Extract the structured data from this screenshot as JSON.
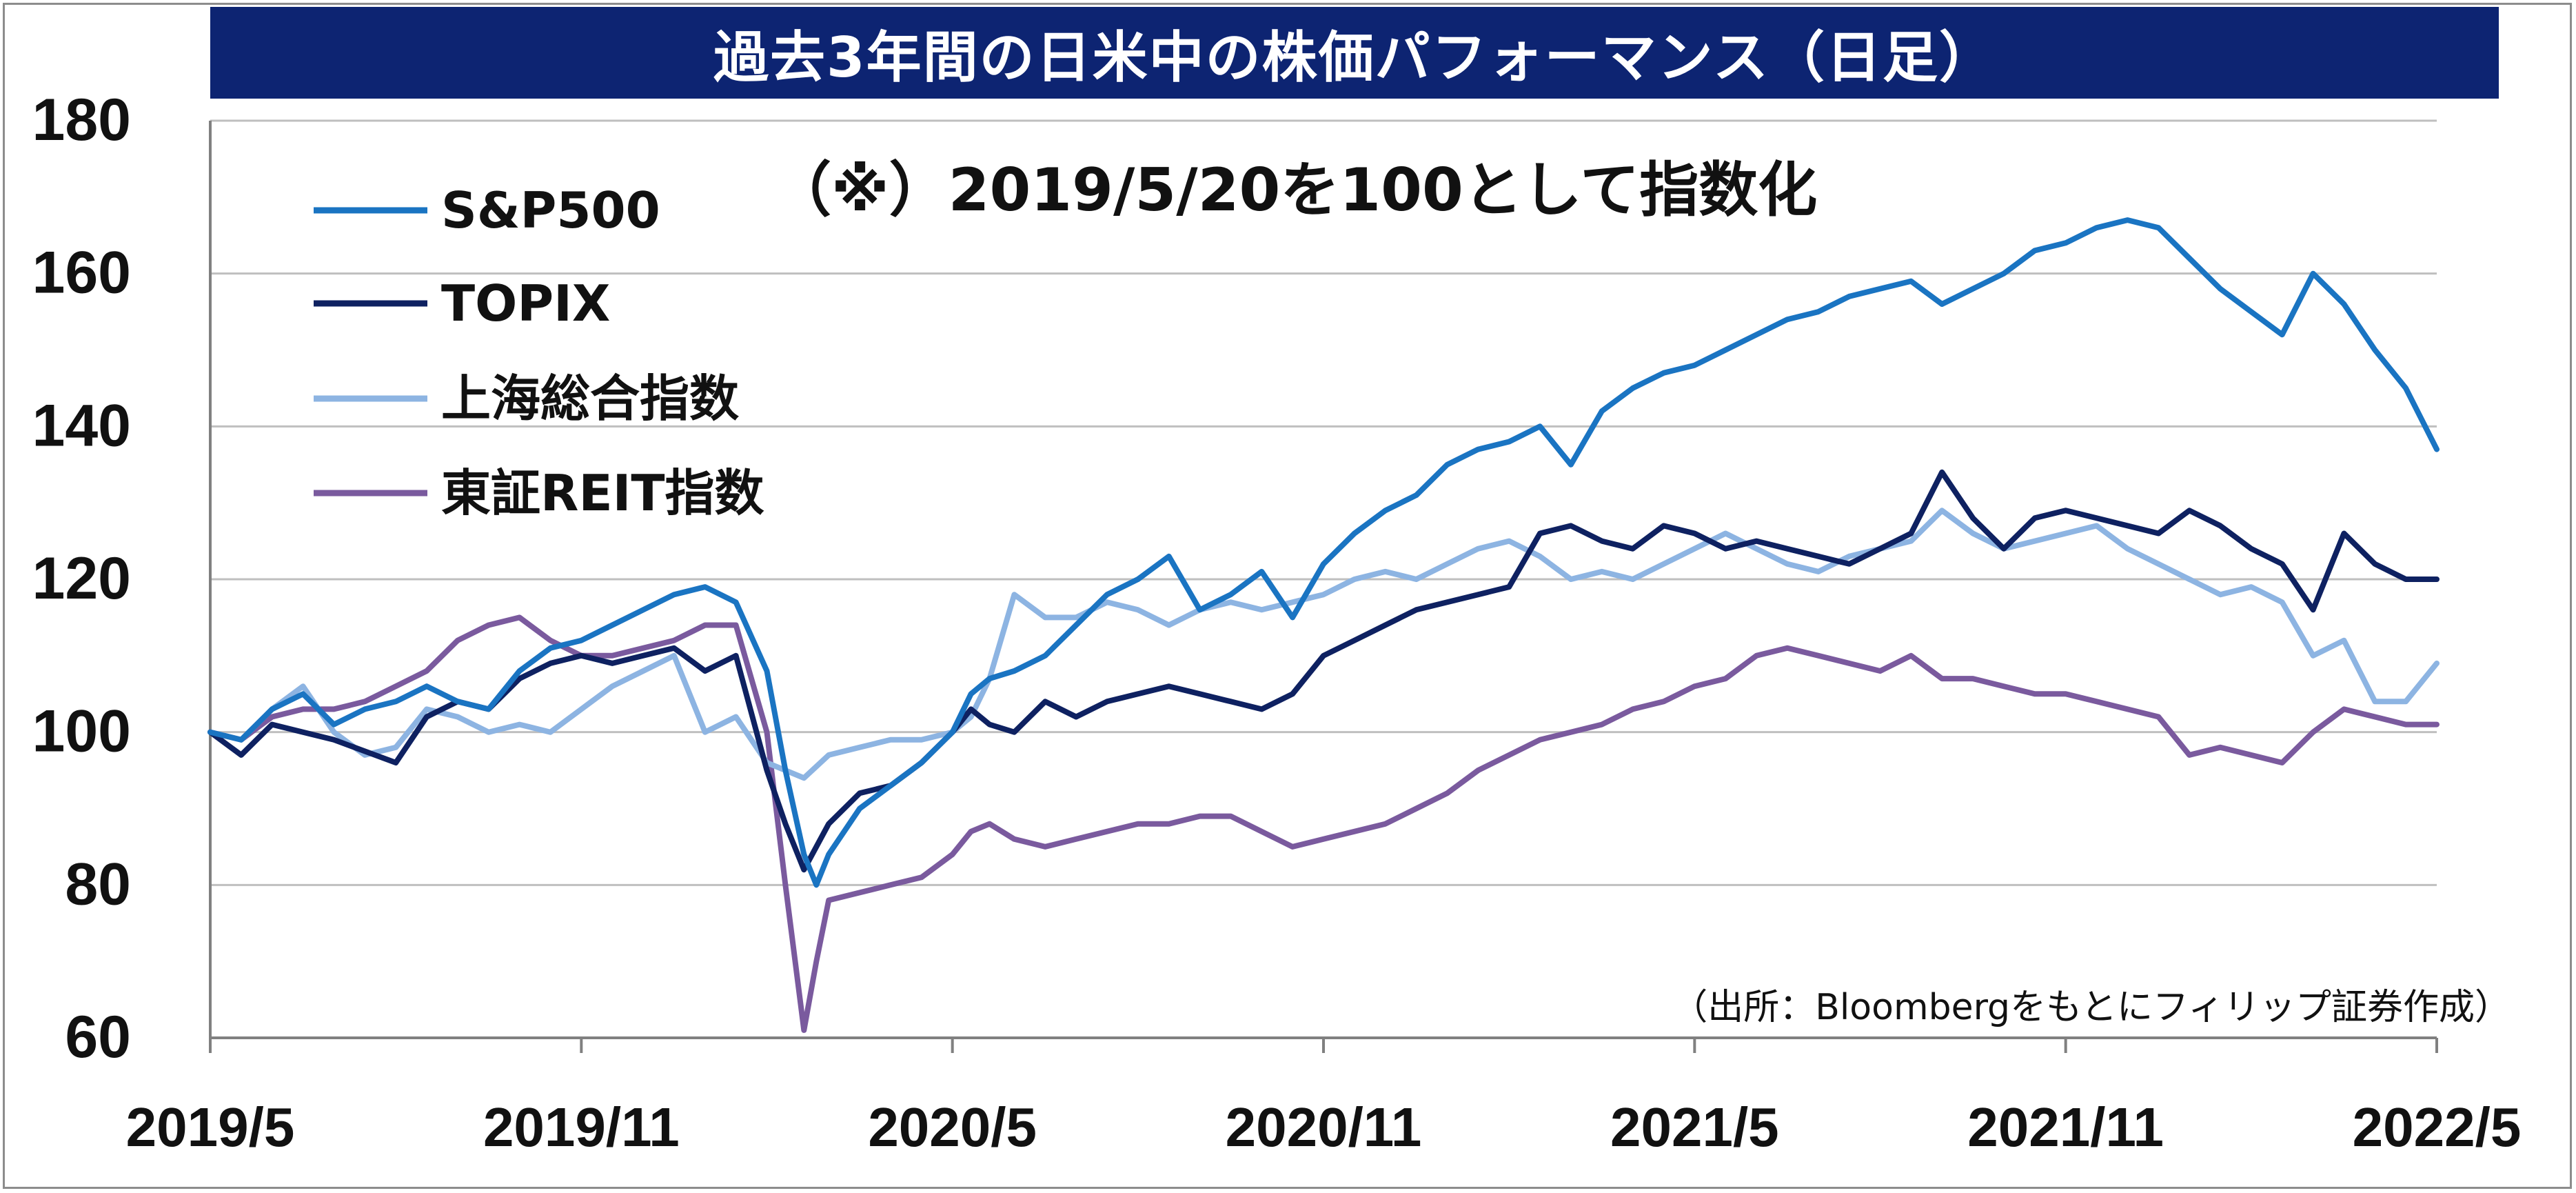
{
  "title": "過去3年間の日米中の株価パフォーマンス（日足）",
  "subtitle": "（※）2019/5/20を100として指数化",
  "source": "（出所：Bloombergをもとにフィリップ証券作成）",
  "colors": {
    "sp500": "#1a74c2",
    "topix": "#0e2161",
    "shanghai": "#8db4e2",
    "reit": "#7a5a9e",
    "title_bg": "#0d2472",
    "grid": "#bfbfbf",
    "axis": "#808080"
  },
  "chart_data": {
    "type": "line",
    "title": "過去3年間の日米中の株価パフォーマンス（日足）",
    "ylim": [
      60,
      180
    ],
    "yticks": [
      "60",
      "80",
      "100",
      "120",
      "140",
      "160",
      "180"
    ],
    "xlim": [
      0,
      36
    ],
    "xticks": [
      {
        "x": 0,
        "label": "2019/5"
      },
      {
        "x": 6,
        "label": "2019/11"
      },
      {
        "x": 12,
        "label": "2020/5"
      },
      {
        "x": 18,
        "label": "2020/11"
      },
      {
        "x": 24,
        "label": "2021/5"
      },
      {
        "x": 30,
        "label": "2021/11"
      },
      {
        "x": 36,
        "label": "2022/5"
      }
    ],
    "grid": true,
    "legend_position": "top-left",
    "series": [
      {
        "name": "S&P500",
        "key": "sp500",
        "points": [
          [
            0,
            100
          ],
          [
            0.5,
            99
          ],
          [
            1,
            103
          ],
          [
            1.5,
            105
          ],
          [
            2,
            101
          ],
          [
            2.5,
            103
          ],
          [
            3,
            104
          ],
          [
            3.5,
            106
          ],
          [
            4,
            104
          ],
          [
            4.5,
            103
          ],
          [
            5,
            108
          ],
          [
            5.5,
            111
          ],
          [
            6,
            112
          ],
          [
            6.5,
            114
          ],
          [
            7,
            116
          ],
          [
            7.5,
            118
          ],
          [
            8,
            119
          ],
          [
            8.5,
            117
          ],
          [
            9,
            108
          ],
          [
            9.3,
            95
          ],
          [
            9.6,
            84
          ],
          [
            9.8,
            80
          ],
          [
            10,
            84
          ],
          [
            10.5,
            90
          ],
          [
            11,
            93
          ],
          [
            11.5,
            96
          ],
          [
            12,
            100
          ],
          [
            12.3,
            105
          ],
          [
            12.6,
            107
          ],
          [
            13,
            108
          ],
          [
            13.5,
            110
          ],
          [
            14,
            114
          ],
          [
            14.5,
            118
          ],
          [
            15,
            120
          ],
          [
            15.5,
            123
          ],
          [
            16,
            116
          ],
          [
            16.5,
            118
          ],
          [
            17,
            121
          ],
          [
            17.5,
            115
          ],
          [
            18,
            122
          ],
          [
            18.5,
            126
          ],
          [
            19,
            129
          ],
          [
            19.5,
            131
          ],
          [
            20,
            135
          ],
          [
            20.5,
            137
          ],
          [
            21,
            138
          ],
          [
            21.5,
            140
          ],
          [
            22,
            135
          ],
          [
            22.5,
            142
          ],
          [
            23,
            145
          ],
          [
            23.5,
            147
          ],
          [
            24,
            148
          ],
          [
            24.5,
            150
          ],
          [
            25,
            152
          ],
          [
            25.5,
            154
          ],
          [
            26,
            155
          ],
          [
            26.5,
            157
          ],
          [
            27,
            158
          ],
          [
            27.5,
            159
          ],
          [
            28,
            156
          ],
          [
            28.5,
            158
          ],
          [
            29,
            160
          ],
          [
            29.5,
            163
          ],
          [
            30,
            164
          ],
          [
            30.5,
            166
          ],
          [
            31,
            167
          ],
          [
            31.5,
            166
          ],
          [
            32,
            162
          ],
          [
            32.5,
            158
          ],
          [
            33,
            155
          ],
          [
            33.5,
            152
          ],
          [
            34,
            160
          ],
          [
            34.5,
            156
          ],
          [
            35,
            150
          ],
          [
            35.5,
            145
          ],
          [
            36,
            137
          ]
        ]
      },
      {
        "name": "TOPIX",
        "key": "topix",
        "points": [
          [
            0,
            100
          ],
          [
            0.5,
            97
          ],
          [
            1,
            101
          ],
          [
            1.5,
            100
          ],
          [
            2,
            99
          ],
          [
            3,
            96
          ],
          [
            3.5,
            102
          ],
          [
            4,
            104
          ],
          [
            4.5,
            103
          ],
          [
            5,
            107
          ],
          [
            5.5,
            109
          ],
          [
            6,
            110
          ],
          [
            6.5,
            109
          ],
          [
            7,
            110
          ],
          [
            7.5,
            111
          ],
          [
            8,
            108
          ],
          [
            8.5,
            110
          ],
          [
            9,
            95
          ],
          [
            9.3,
            88
          ],
          [
            9.6,
            82
          ],
          [
            10,
            88
          ],
          [
            10.5,
            92
          ],
          [
            11,
            93
          ],
          [
            11.5,
            96
          ],
          [
            12,
            100
          ],
          [
            12.3,
            103
          ],
          [
            12.6,
            101
          ],
          [
            13,
            100
          ],
          [
            13.5,
            104
          ],
          [
            14,
            102
          ],
          [
            14.5,
            104
          ],
          [
            15,
            105
          ],
          [
            15.5,
            106
          ],
          [
            16,
            105
          ],
          [
            16.5,
            104
          ],
          [
            17,
            103
          ],
          [
            17.5,
            105
          ],
          [
            18,
            110
          ],
          [
            18.5,
            112
          ],
          [
            19,
            114
          ],
          [
            19.5,
            116
          ],
          [
            20,
            117
          ],
          [
            20.5,
            118
          ],
          [
            21,
            119
          ],
          [
            21.5,
            126
          ],
          [
            22,
            127
          ],
          [
            22.5,
            125
          ],
          [
            23,
            124
          ],
          [
            23.5,
            127
          ],
          [
            24,
            126
          ],
          [
            24.5,
            124
          ],
          [
            25,
            125
          ],
          [
            25.5,
            124
          ],
          [
            26,
            123
          ],
          [
            26.5,
            122
          ],
          [
            27,
            124
          ],
          [
            27.5,
            126
          ],
          [
            28,
            134
          ],
          [
            28.5,
            128
          ],
          [
            29,
            124
          ],
          [
            29.5,
            128
          ],
          [
            30,
            129
          ],
          [
            30.5,
            128
          ],
          [
            31,
            127
          ],
          [
            31.5,
            126
          ],
          [
            32,
            129
          ],
          [
            32.5,
            127
          ],
          [
            33,
            124
          ],
          [
            33.5,
            122
          ],
          [
            34,
            116
          ],
          [
            34.5,
            126
          ],
          [
            35,
            122
          ],
          [
            35.5,
            120
          ],
          [
            36,
            120
          ]
        ]
      },
      {
        "name": "上海総合指数",
        "key": "shanghai",
        "points": [
          [
            0,
            100
          ],
          [
            0.5,
            99
          ],
          [
            1,
            103
          ],
          [
            1.5,
            106
          ],
          [
            2,
            100
          ],
          [
            2.5,
            97
          ],
          [
            3,
            98
          ],
          [
            3.5,
            103
          ],
          [
            4,
            102
          ],
          [
            4.5,
            100
          ],
          [
            5,
            101
          ],
          [
            5.5,
            100
          ],
          [
            6,
            103
          ],
          [
            6.5,
            106
          ],
          [
            7,
            108
          ],
          [
            7.5,
            110
          ],
          [
            8,
            100
          ],
          [
            8.5,
            102
          ],
          [
            9,
            96
          ],
          [
            9.3,
            95
          ],
          [
            9.6,
            94
          ],
          [
            10,
            97
          ],
          [
            10.5,
            98
          ],
          [
            11,
            99
          ],
          [
            11.5,
            99
          ],
          [
            12,
            100
          ],
          [
            12.3,
            102
          ],
          [
            12.6,
            107
          ],
          [
            13,
            118
          ],
          [
            13.5,
            115
          ],
          [
            14,
            115
          ],
          [
            14.5,
            117
          ],
          [
            15,
            116
          ],
          [
            15.5,
            114
          ],
          [
            16,
            116
          ],
          [
            16.5,
            117
          ],
          [
            17,
            116
          ],
          [
            17.5,
            117
          ],
          [
            18,
            118
          ],
          [
            18.5,
            120
          ],
          [
            19,
            121
          ],
          [
            19.5,
            120
          ],
          [
            20,
            122
          ],
          [
            20.5,
            124
          ],
          [
            21,
            125
          ],
          [
            21.5,
            123
          ],
          [
            22,
            120
          ],
          [
            22.5,
            121
          ],
          [
            23,
            120
          ],
          [
            23.5,
            122
          ],
          [
            24,
            124
          ],
          [
            24.5,
            126
          ],
          [
            25,
            124
          ],
          [
            25.5,
            122
          ],
          [
            26,
            121
          ],
          [
            26.5,
            123
          ],
          [
            27,
            124
          ],
          [
            27.5,
            125
          ],
          [
            28,
            129
          ],
          [
            28.5,
            126
          ],
          [
            29,
            124
          ],
          [
            29.5,
            125
          ],
          [
            30,
            126
          ],
          [
            30.5,
            127
          ],
          [
            31,
            124
          ],
          [
            31.5,
            122
          ],
          [
            32,
            120
          ],
          [
            32.5,
            118
          ],
          [
            33,
            119
          ],
          [
            33.5,
            117
          ],
          [
            34,
            110
          ],
          [
            34.5,
            112
          ],
          [
            35,
            104
          ],
          [
            35.5,
            104
          ],
          [
            36,
            109
          ]
        ]
      },
      {
        "name": "東証REIT指数",
        "key": "reit",
        "points": [
          [
            0,
            100
          ],
          [
            0.5,
            99
          ],
          [
            1,
            102
          ],
          [
            1.5,
            103
          ],
          [
            2,
            103
          ],
          [
            2.5,
            104
          ],
          [
            3,
            106
          ],
          [
            3.5,
            108
          ],
          [
            4,
            112
          ],
          [
            4.5,
            114
          ],
          [
            5,
            115
          ],
          [
            5.5,
            112
          ],
          [
            6,
            110
          ],
          [
            6.5,
            110
          ],
          [
            7,
            111
          ],
          [
            7.5,
            112
          ],
          [
            8,
            114
          ],
          [
            8.5,
            114
          ],
          [
            9,
            100
          ],
          [
            9.3,
            80
          ],
          [
            9.6,
            61
          ],
          [
            9.8,
            70
          ],
          [
            10,
            78
          ],
          [
            10.5,
            79
          ],
          [
            11,
            80
          ],
          [
            11.5,
            81
          ],
          [
            12,
            84
          ],
          [
            12.3,
            87
          ],
          [
            12.6,
            88
          ],
          [
            13,
            86
          ],
          [
            13.5,
            85
          ],
          [
            14,
            86
          ],
          [
            14.5,
            87
          ],
          [
            15,
            88
          ],
          [
            15.5,
            88
          ],
          [
            16,
            89
          ],
          [
            16.5,
            89
          ],
          [
            17,
            87
          ],
          [
            17.5,
            85
          ],
          [
            18,
            86
          ],
          [
            18.5,
            87
          ],
          [
            19,
            88
          ],
          [
            19.5,
            90
          ],
          [
            20,
            92
          ],
          [
            20.5,
            95
          ],
          [
            21,
            97
          ],
          [
            21.5,
            99
          ],
          [
            22,
            100
          ],
          [
            22.5,
            101
          ],
          [
            23,
            103
          ],
          [
            23.5,
            104
          ],
          [
            24,
            106
          ],
          [
            24.5,
            107
          ],
          [
            25,
            110
          ],
          [
            25.5,
            111
          ],
          [
            26,
            110
          ],
          [
            26.5,
            109
          ],
          [
            27,
            108
          ],
          [
            27.5,
            110
          ],
          [
            28,
            107
          ],
          [
            28.5,
            107
          ],
          [
            29,
            106
          ],
          [
            29.5,
            105
          ],
          [
            30,
            105
          ],
          [
            30.5,
            104
          ],
          [
            31,
            103
          ],
          [
            31.5,
            102
          ],
          [
            32,
            97
          ],
          [
            32.5,
            98
          ],
          [
            33,
            97
          ],
          [
            33.5,
            96
          ],
          [
            34,
            100
          ],
          [
            34.5,
            103
          ],
          [
            35,
            102
          ],
          [
            35.5,
            101
          ],
          [
            36,
            101
          ]
        ]
      }
    ]
  }
}
